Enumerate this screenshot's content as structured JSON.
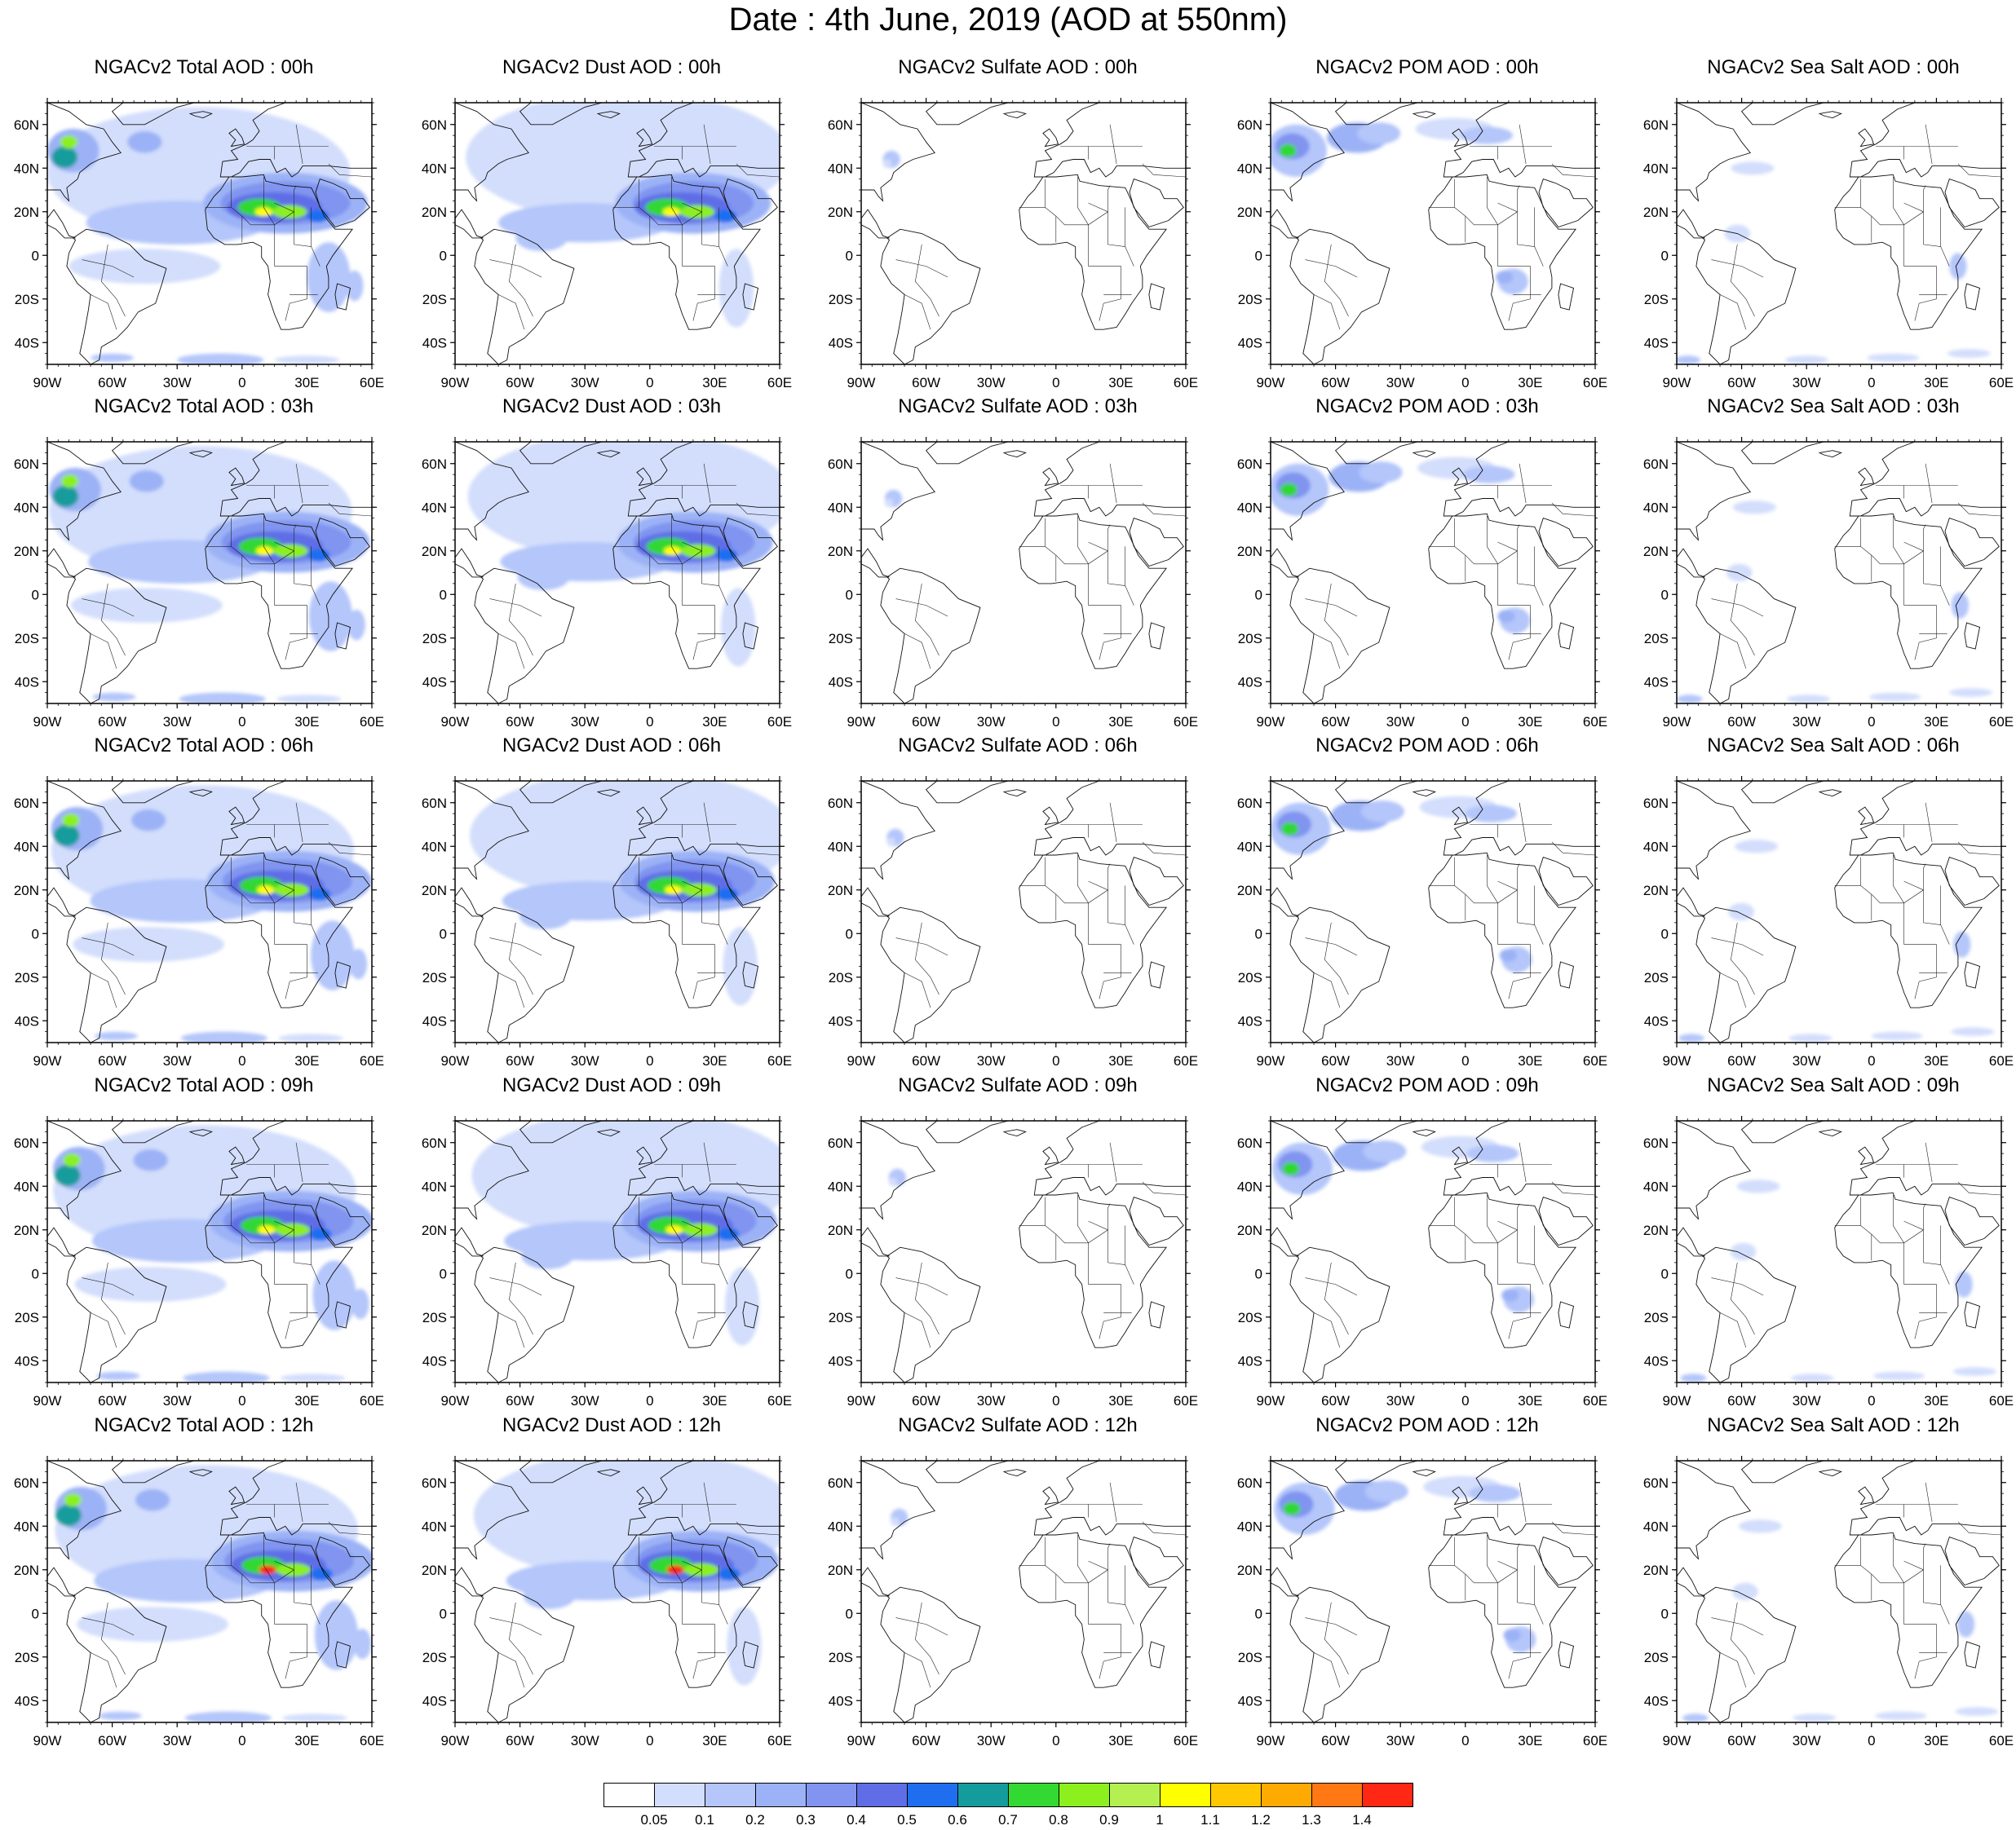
{
  "title": "Date : 4th June, 2019 (AOD at 550nm)",
  "panels": [
    [
      "NGACv2 Total AOD : 00h",
      "NGACv2 Dust AOD : 00h",
      "NGACv2 Sulfate AOD : 00h",
      "NGACv2 POM AOD : 00h",
      "NGACv2 Sea Salt AOD : 00h"
    ],
    [
      "NGACv2 Total AOD : 03h",
      "NGACv2 Dust AOD : 03h",
      "NGACv2 Sulfate AOD : 03h",
      "NGACv2 POM AOD : 03h",
      "NGACv2 Sea Salt AOD : 03h"
    ],
    [
      "NGACv2 Total AOD : 06h",
      "NGACv2 Dust AOD : 06h",
      "NGACv2 Sulfate AOD : 06h",
      "NGACv2 POM AOD : 06h",
      "NGACv2 Sea Salt AOD : 06h"
    ],
    [
      "NGACv2 Total AOD : 09h",
      "NGACv2 Dust AOD : 09h",
      "NGACv2 Sulfate AOD : 09h",
      "NGACv2 POM AOD : 09h",
      "NGACv2 Sea Salt  AOD : 09h"
    ],
    [
      "NGACv2 Total AOD  : 12h",
      "NGACv2 Dust AOD : 12h",
      "NGACv2 Sulfate AOD : 12h",
      "NGACv2 POM  AOD : 12h",
      "NGACv2 Sea Salt  AOD : 12h"
    ]
  ],
  "lat_ticks": [
    "60N",
    "40N",
    "20N",
    "0",
    "20S",
    "40S"
  ],
  "lon_ticks": [
    "90W",
    "60W",
    "30W",
    "0",
    "30E",
    "60E"
  ],
  "map_extent": {
    "lon": [
      -90,
      60
    ],
    "lat": [
      -50,
      70
    ]
  },
  "colorbar": {
    "colors": [
      "#ffffff",
      "#d3defc",
      "#b4c6fa",
      "#9cb2f6",
      "#8094f0",
      "#5f6ee6",
      "#1f6ef0",
      "#149c9c",
      "#33d833",
      "#8cf01e",
      "#b4f050",
      "#ffff00",
      "#ffc800",
      "#ffaa00",
      "#ff7814",
      "#ff2814"
    ],
    "labels": [
      "0.05",
      "0.1",
      "0.2",
      "0.3",
      "0.4",
      "0.5",
      "0.6",
      "0.7",
      "0.8",
      "0.9",
      "1",
      "1.1",
      "1.2",
      "1.3",
      "1.4"
    ]
  }
}
